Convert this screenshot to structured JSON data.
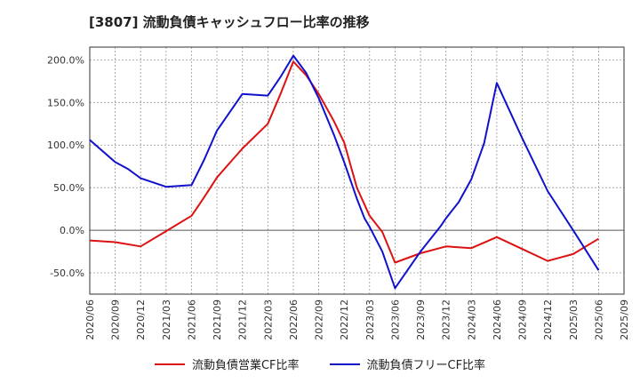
{
  "chart_data": {
    "type": "line",
    "title": "[3807]  流動負債キャッシュフロー比率の推移",
    "xlabel": "",
    "ylabel": "",
    "ylim": [
      -75,
      215
    ],
    "yticks": [
      "-50.0%",
      "0.0%",
      "50.0%",
      "100.0%",
      "150.0%",
      "200.0%"
    ],
    "yticks_values": [
      -50,
      0,
      50,
      100,
      150,
      200
    ],
    "categories": [
      "2020/06",
      "2020/09",
      "2020/12",
      "2021/03",
      "2021/06",
      "2021/09",
      "2021/12",
      "2022/03",
      "2022/06",
      "2022/09",
      "2022/12",
      "2023/03",
      "2023/06",
      "2023/09",
      "2023/12",
      "2024/03",
      "2024/06",
      "2024/09",
      "2024/12",
      "2025/03",
      "2025/06",
      "2025/09"
    ],
    "grid": true,
    "legend_position": "bottom",
    "series": [
      {
        "name": "流動負債営業CF比率",
        "color": "#dd1111",
        "x": [
          0,
          1,
          2,
          3,
          4,
          4.3,
          4.7,
          5,
          6,
          7,
          7.5,
          8,
          8.5,
          9,
          9.6,
          10,
          10.5,
          10.8,
          11,
          11.5,
          12,
          13,
          14,
          15,
          16,
          17,
          18,
          19,
          20
        ],
        "values": [
          -12,
          -14,
          -19,
          -1,
          17,
          30,
          48,
          62,
          96,
          125,
          160,
          198,
          182,
          160,
          128,
          103,
          50,
          30,
          17,
          -2,
          -38,
          -27,
          -19,
          -21,
          -8,
          -22,
          -36,
          -28,
          -10
        ]
      },
      {
        "name": "流動負債フリーCF比率",
        "color": "#1111cc",
        "x": [
          0,
          1,
          1.5,
          2,
          3,
          4,
          4.5,
          5,
          6,
          7,
          7.5,
          8,
          8.5,
          9,
          9.6,
          10,
          10.5,
          10.8,
          11,
          11.5,
          12,
          13,
          13.8,
          14,
          14.5,
          15,
          15.5,
          16,
          17,
          18,
          19,
          20
        ],
        "values": [
          106,
          80,
          72,
          61,
          51,
          53,
          83,
          117,
          160,
          158,
          180,
          205,
          185,
          155,
          112,
          80,
          37,
          14,
          4,
          -25,
          -68,
          -25,
          5,
          14,
          33,
          60,
          102,
          173,
          108,
          46,
          0,
          -47
        ]
      }
    ]
  }
}
